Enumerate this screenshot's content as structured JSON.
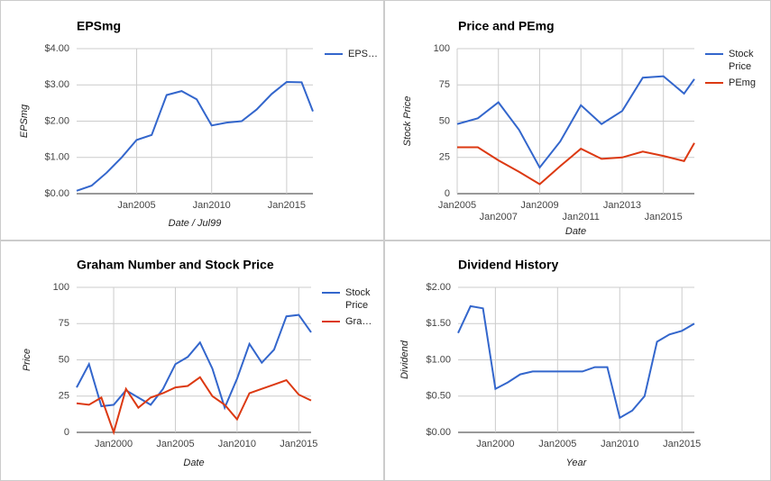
{
  "chart_data": [
    {
      "type": "line",
      "title": "EPSmg",
      "x_label": "Date / Jul99",
      "y_label": "EPSmg",
      "x": [
        2001,
        2002,
        2003,
        2004,
        2005,
        2006,
        2007,
        2008,
        2009,
        2010,
        2011,
        2012,
        2013,
        2014,
        2015,
        2016,
        2016.75
      ],
      "series": [
        {
          "name": "EPS…",
          "color": "#3366cc",
          "values": [
            0.08,
            0.22,
            0.58,
            1.0,
            1.48,
            1.62,
            2.72,
            2.83,
            2.6,
            1.88,
            1.96,
            2.0,
            2.32,
            2.75,
            3.08,
            3.07,
            2.27
          ]
        }
      ],
      "xlim": [
        2001,
        2016.75
      ],
      "xticks": [
        {
          "value": 2005,
          "label": "Jan2005"
        },
        {
          "value": 2010,
          "label": "Jan2010"
        },
        {
          "value": 2015,
          "label": "Jan2015"
        }
      ],
      "ylim": [
        0,
        4
      ],
      "yticks": [
        {
          "value": 0,
          "label": "$0.00"
        },
        {
          "value": 1,
          "label": "$1.00"
        },
        {
          "value": 2,
          "label": "$2.00"
        },
        {
          "value": 3,
          "label": "$3.00"
        },
        {
          "value": 4,
          "label": "$4.00"
        }
      ],
      "grid": true,
      "legend": "right"
    },
    {
      "type": "line",
      "title": "Price and PEmg",
      "x_label": "Date",
      "y_label": "Stock Price",
      "x": [
        2005,
        2006,
        2007,
        2008,
        2009,
        2010,
        2011,
        2012,
        2013,
        2014,
        2015,
        2016,
        2016.5
      ],
      "series": [
        {
          "name": "Stock Price",
          "color": "#3366cc",
          "values": [
            48,
            52,
            63,
            44,
            18,
            36,
            61,
            48,
            57,
            80,
            81,
            69,
            79
          ]
        },
        {
          "name": "PEmg",
          "color": "#dc3912",
          "values": [
            32,
            32,
            23,
            15,
            6.5,
            19,
            31,
            24,
            25,
            29,
            26,
            22.5,
            35
          ]
        }
      ],
      "xlim": [
        2005,
        2016.5
      ],
      "xticks": [
        {
          "value": 2005,
          "label": "Jan2005"
        },
        {
          "value": 2007,
          "label": "Jan2007"
        },
        {
          "value": 2009,
          "label": "Jan2009"
        },
        {
          "value": 2011,
          "label": "Jan2011"
        },
        {
          "value": 2013,
          "label": "Jan2013"
        },
        {
          "value": 2015,
          "label": "Jan2015"
        }
      ],
      "ylim": [
        0,
        100
      ],
      "yticks": [
        0,
        25,
        50,
        75,
        100
      ],
      "grid": true,
      "legend": "right"
    },
    {
      "type": "line",
      "title": "Graham Number and Stock Price",
      "x_label": "Date",
      "y_label": "Price",
      "x": [
        1997,
        1998,
        1999,
        2000,
        2001,
        2002,
        2003,
        2004,
        2005,
        2006,
        2007,
        2008,
        2009,
        2010,
        2011,
        2012,
        2013,
        2014,
        2015,
        2016
      ],
      "series": [
        {
          "name": "Stock Price",
          "color": "#3366cc",
          "values": [
            31,
            47,
            18,
            19,
            29,
            24,
            19,
            30,
            47,
            52,
            62,
            44,
            17,
            37,
            61,
            48,
            57,
            80,
            81,
            69
          ]
        },
        {
          "name": "Gra…",
          "color": "#dc3912",
          "values": [
            20,
            19,
            24,
            0,
            30,
            17,
            24,
            27,
            31,
            32,
            38,
            25,
            19,
            9,
            27,
            30,
            33,
            36,
            26,
            22
          ]
        }
      ],
      "xlim": [
        1997,
        2016
      ],
      "xticks": [
        {
          "value": 2000,
          "label": "Jan2000"
        },
        {
          "value": 2005,
          "label": "Jan2005"
        },
        {
          "value": 2010,
          "label": "Jan2010"
        },
        {
          "value": 2015,
          "label": "Jan2015"
        }
      ],
      "ylim": [
        0,
        100
      ],
      "yticks": [
        0,
        25,
        50,
        75,
        100
      ],
      "grid": true,
      "legend": "right"
    },
    {
      "type": "line",
      "title": "Dividend History",
      "x_label": "Year",
      "y_label": "Dividend",
      "x": [
        1997,
        1998,
        1999,
        2000,
        2001,
        2002,
        2003,
        2004,
        2005,
        2006,
        2007,
        2008,
        2009,
        2010,
        2011,
        2012,
        2013,
        2014,
        2015,
        2016
      ],
      "series": [
        {
          "color": "#3366cc",
          "values": [
            1.37,
            1.74,
            1.71,
            0.6,
            0.69,
            0.8,
            0.84,
            0.84,
            0.84,
            0.84,
            0.84,
            0.9,
            0.9,
            0.2,
            0.3,
            0.5,
            1.25,
            1.35,
            1.4,
            1.5
          ]
        }
      ],
      "xlim": [
        1997,
        2016
      ],
      "xticks": [
        {
          "value": 2000,
          "label": "Jan2000"
        },
        {
          "value": 2005,
          "label": "Jan2005"
        },
        {
          "value": 2010,
          "label": "Jan2010"
        },
        {
          "value": 2015,
          "label": "Jan2015"
        }
      ],
      "ylim": [
        0,
        2
      ],
      "yticks": [
        {
          "value": 0,
          "label": "$0.00"
        },
        {
          "value": 0.5,
          "label": "$0.50"
        },
        {
          "value": 1,
          "label": "$1.00"
        },
        {
          "value": 1.5,
          "label": "$1.50"
        },
        {
          "value": 2,
          "label": "$2.00"
        }
      ],
      "grid": true
    }
  ]
}
